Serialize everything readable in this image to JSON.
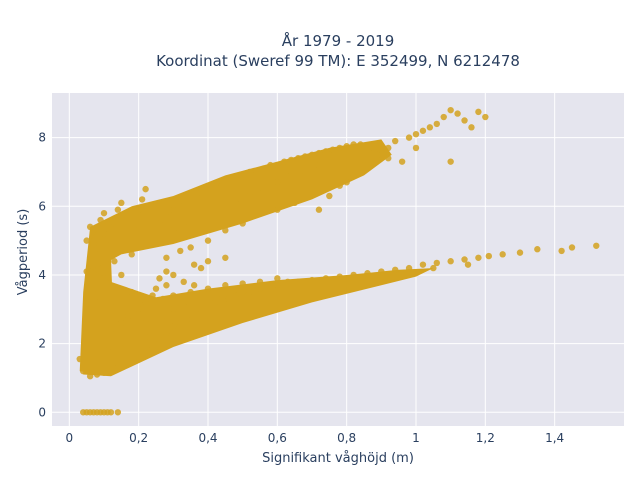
{
  "chart_data": {
    "type": "scatter",
    "title_line1": "År 1979 - 2019",
    "title_line2": "Koordinat (Sweref 99 TM): E 352499, N 6212478",
    "xlabel": "Signifikant våghöjd (m)",
    "ylabel": "Vågperiod (s)",
    "xlim": [
      -0.05,
      1.6
    ],
    "ylim": [
      -0.4,
      9.3
    ],
    "x_ticks": [
      0,
      0.2,
      0.4,
      0.6,
      0.8,
      1,
      1.2,
      1.4
    ],
    "x_tick_labels": [
      "0",
      "0,2",
      "0,4",
      "0,6",
      "0,8",
      "1",
      "1,2",
      "1,4"
    ],
    "y_ticks": [
      0,
      2,
      4,
      6,
      8
    ],
    "y_tick_labels": [
      "0",
      "2",
      "4",
      "6",
      "8"
    ],
    "grid": true,
    "marker_color": "#d4a21e",
    "plot_background": "#e5e5ee",
    "series": [
      {
        "points": [
          [
            0.04,
            0
          ],
          [
            0.05,
            0
          ],
          [
            0.06,
            0
          ],
          [
            0.07,
            0
          ],
          [
            0.08,
            0
          ],
          [
            0.09,
            0
          ],
          [
            0.1,
            0
          ],
          [
            0.11,
            0
          ],
          [
            0.12,
            0
          ],
          [
            0.14,
            0
          ],
          [
            0.03,
            1.55
          ],
          [
            0.04,
            1.2
          ],
          [
            0.06,
            1.05
          ],
          [
            0.08,
            1.1
          ],
          [
            0.1,
            1.15
          ],
          [
            0.12,
            1.2
          ],
          [
            0.14,
            1.3
          ],
          [
            0.16,
            1.35
          ],
          [
            0.05,
            2.3
          ],
          [
            0.06,
            3.0
          ],
          [
            0.07,
            3.6
          ],
          [
            0.05,
            4.1
          ],
          [
            0.06,
            4.5
          ],
          [
            0.07,
            4.9
          ],
          [
            0.06,
            5.4
          ],
          [
            0.05,
            5.0
          ],
          [
            0.08,
            2.6
          ],
          [
            0.09,
            3.3
          ],
          [
            0.1,
            3.9
          ],
          [
            0.08,
            4.3
          ],
          [
            0.09,
            4.7
          ],
          [
            0.1,
            5.2
          ],
          [
            0.09,
            5.6
          ],
          [
            0.1,
            5.8
          ],
          [
            0.11,
            1.8
          ],
          [
            0.12,
            2.4
          ],
          [
            0.12,
            3.2
          ],
          [
            0.13,
            4.4
          ],
          [
            0.12,
            5.0
          ],
          [
            0.13,
            5.5
          ],
          [
            0.14,
            5.9
          ],
          [
            0.15,
            6.1
          ],
          [
            0.16,
            2.0
          ],
          [
            0.17,
            2.8
          ],
          [
            0.18,
            3.5
          ],
          [
            0.18,
            4.6
          ],
          [
            0.19,
            5.3
          ],
          [
            0.2,
            5.9
          ],
          [
            0.21,
            6.2
          ],
          [
            0.22,
            6.5
          ],
          [
            0.2,
            1.6
          ],
          [
            0.22,
            2.2
          ],
          [
            0.24,
            1.9
          ],
          [
            0.26,
            2.1
          ],
          [
            0.28,
            2.3
          ],
          [
            0.3,
            2.5
          ],
          [
            0.32,
            2.6
          ],
          [
            0.34,
            2.7
          ],
          [
            0.36,
            2.9
          ],
          [
            0.38,
            3.0
          ],
          [
            0.4,
            3.1
          ],
          [
            0.42,
            3.2
          ],
          [
            0.44,
            3.3
          ],
          [
            0.46,
            3.3
          ],
          [
            0.48,
            3.4
          ],
          [
            0.5,
            3.5
          ],
          [
            0.52,
            3.5
          ],
          [
            0.55,
            3.6
          ],
          [
            0.58,
            3.7
          ],
          [
            0.6,
            3.7
          ],
          [
            0.63,
            3.8
          ],
          [
            0.66,
            3.8
          ],
          [
            0.7,
            3.85
          ],
          [
            0.74,
            3.9
          ],
          [
            0.78,
            3.95
          ],
          [
            0.82,
            4.0
          ],
          [
            0.86,
            4.05
          ],
          [
            0.9,
            4.1
          ],
          [
            0.94,
            4.15
          ],
          [
            0.98,
            4.2
          ],
          [
            1.02,
            4.3
          ],
          [
            1.06,
            4.35
          ],
          [
            1.1,
            4.4
          ],
          [
            1.14,
            4.45
          ],
          [
            1.18,
            4.5
          ],
          [
            1.21,
            4.55
          ],
          [
            1.25,
            4.6
          ],
          [
            1.3,
            4.65
          ],
          [
            1.35,
            4.75
          ],
          [
            1.42,
            4.7
          ],
          [
            1.45,
            4.8
          ],
          [
            1.52,
            4.85
          ],
          [
            1.15,
            4.3
          ],
          [
            1.05,
            4.2
          ],
          [
            0.95,
            4.0
          ],
          [
            0.85,
            3.9
          ],
          [
            0.25,
            2.6
          ],
          [
            0.28,
            2.8
          ],
          [
            0.3,
            3.0
          ],
          [
            0.33,
            3.1
          ],
          [
            0.27,
            3.3
          ],
          [
            0.3,
            3.4
          ],
          [
            0.35,
            3.5
          ],
          [
            0.4,
            3.6
          ],
          [
            0.45,
            3.7
          ],
          [
            0.5,
            3.75
          ],
          [
            0.55,
            3.8
          ],
          [
            0.6,
            3.9
          ],
          [
            0.2,
            3.0
          ],
          [
            0.22,
            3.2
          ],
          [
            0.24,
            3.4
          ],
          [
            0.25,
            3.6
          ],
          [
            0.24,
            5.2
          ],
          [
            0.26,
            5.5
          ],
          [
            0.28,
            5.7
          ],
          [
            0.3,
            5.9
          ],
          [
            0.32,
            6.0
          ],
          [
            0.34,
            6.1
          ],
          [
            0.36,
            6.2
          ],
          [
            0.38,
            6.4
          ],
          [
            0.4,
            6.5
          ],
          [
            0.42,
            6.6
          ],
          [
            0.44,
            6.6
          ],
          [
            0.46,
            6.7
          ],
          [
            0.48,
            6.8
          ],
          [
            0.5,
            6.9
          ],
          [
            0.52,
            7.0
          ],
          [
            0.54,
            7.0
          ],
          [
            0.56,
            7.1
          ],
          [
            0.58,
            7.2
          ],
          [
            0.6,
            7.2
          ],
          [
            0.62,
            7.3
          ],
          [
            0.64,
            7.35
          ],
          [
            0.66,
            7.4
          ],
          [
            0.68,
            7.45
          ],
          [
            0.7,
            7.5
          ],
          [
            0.72,
            7.55
          ],
          [
            0.74,
            7.6
          ],
          [
            0.76,
            7.65
          ],
          [
            0.78,
            7.7
          ],
          [
            0.8,
            7.75
          ],
          [
            0.82,
            7.8
          ],
          [
            0.84,
            7.8
          ],
          [
            0.86,
            7.75
          ],
          [
            0.88,
            7.6
          ],
          [
            0.9,
            7.5
          ],
          [
            0.92,
            7.7
          ],
          [
            0.94,
            7.9
          ],
          [
            0.96,
            7.3
          ],
          [
            0.98,
            8.0
          ],
          [
            1.0,
            8.1
          ],
          [
            1.02,
            8.2
          ],
          [
            1.04,
            8.3
          ],
          [
            1.06,
            8.4
          ],
          [
            1.08,
            8.6
          ],
          [
            1.1,
            8.8
          ],
          [
            1.12,
            8.7
          ],
          [
            1.14,
            8.5
          ],
          [
            1.16,
            8.3
          ],
          [
            1.18,
            8.75
          ],
          [
            1.2,
            8.6
          ],
          [
            1.1,
            7.3
          ],
          [
            1.0,
            7.7
          ],
          [
            0.92,
            7.4
          ],
          [
            0.3,
            5.3
          ],
          [
            0.33,
            5.5
          ],
          [
            0.36,
            5.6
          ],
          [
            0.4,
            5.8
          ],
          [
            0.44,
            5.9
          ],
          [
            0.48,
            6.1
          ],
          [
            0.52,
            6.3
          ],
          [
            0.56,
            6.5
          ],
          [
            0.6,
            6.7
          ],
          [
            0.64,
            6.9
          ],
          [
            0.68,
            7.0
          ],
          [
            0.72,
            7.2
          ],
          [
            0.35,
            4.8
          ],
          [
            0.4,
            5.0
          ],
          [
            0.45,
            5.3
          ],
          [
            0.5,
            5.5
          ],
          [
            0.28,
            4.5
          ],
          [
            0.32,
            4.7
          ],
          [
            0.36,
            4.3
          ],
          [
            0.38,
            4.2
          ],
          [
            0.4,
            4.4
          ],
          [
            0.45,
            4.5
          ],
          [
            0.28,
            4.1
          ],
          [
            0.3,
            4.0
          ],
          [
            0.75,
            6.3
          ],
          [
            0.72,
            5.9
          ],
          [
            0.78,
            6.6
          ],
          [
            0.8,
            6.7
          ],
          [
            0.82,
            6.9
          ],
          [
            0.85,
            7.2
          ],
          [
            0.6,
            5.9
          ],
          [
            0.65,
            6.1
          ],
          [
            0.15,
            2.6
          ],
          [
            0.18,
            3.0
          ],
          [
            0.22,
            2.6
          ],
          [
            0.26,
            3.9
          ],
          [
            0.28,
            3.7
          ],
          [
            0.33,
            3.8
          ],
          [
            0.36,
            3.7
          ],
          [
            0.15,
            4.0
          ]
        ]
      }
    ]
  }
}
